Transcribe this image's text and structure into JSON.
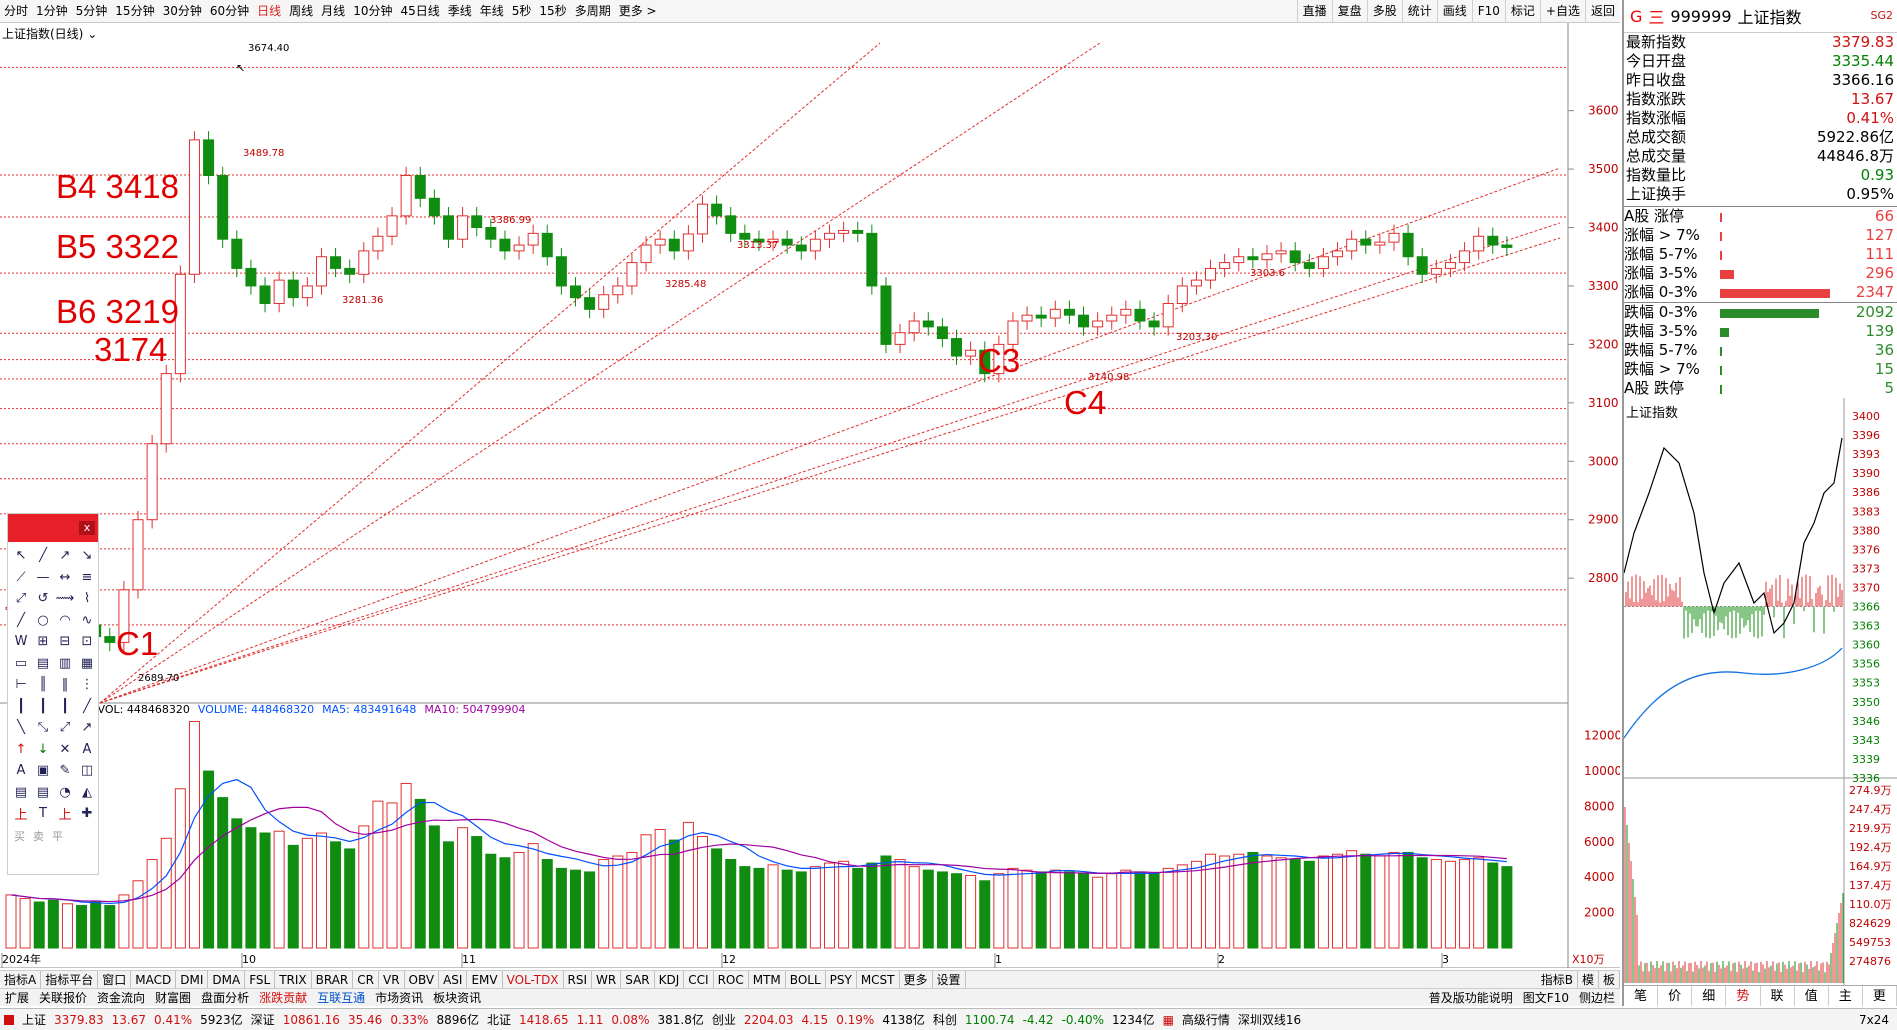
{
  "toolbar": {
    "timeframes": [
      "分时",
      "1分钟",
      "5分钟",
      "15分钟",
      "30分钟",
      "60分钟",
      "日线",
      "周线",
      "月线",
      "10分钟",
      "45日线",
      "季线",
      "年线",
      "5秒",
      "15秒",
      "多周期",
      "更多 >"
    ],
    "active_timeframe": "日线",
    "tools": [
      "直播",
      "复盘",
      "多股",
      "统计",
      "画线",
      "F10",
      "标记",
      "+自选",
      "返回"
    ]
  },
  "chart": {
    "title": "上证指数(日线)",
    "annotations": [
      "B4 3418",
      "B5 3322",
      "B6 3219",
      "3174",
      "C1",
      "C3",
      "C4"
    ],
    "price_labels": [
      "3674.40",
      "3489.78",
      "3386.99",
      "3285.48",
      "3281.36",
      "3313.37",
      "3203.30",
      "3140.98",
      "3303.6",
      "2689.70"
    ],
    "y_ticks": [
      "3600",
      "3500",
      "3400",
      "3300",
      "3200",
      "3100",
      "3000",
      "2900",
      "2800"
    ],
    "months": [
      "2024年",
      "10",
      "11",
      "12",
      "1",
      "2",
      "3"
    ],
    "volume_legend": {
      "vol": "VVOL: 448468320",
      "volume": "VOLUME: 448468320",
      "ma5": "MA5: 483491648",
      "ma10": "MA10: 504799904"
    },
    "volume_ticks": [
      "12000",
      "10000",
      "8000",
      "6000",
      "4000",
      "2000"
    ],
    "volume_unit": "X10万",
    "right_axis_label": "日线"
  },
  "chart_data": {
    "type": "candlestick",
    "title": "上证指数(日线)",
    "ylim": [
      2600,
      3750
    ],
    "labeled_points": [
      {
        "label": "3674.40",
        "value": 3674.4
      },
      {
        "label": "2689.70",
        "value": 2689.7
      },
      {
        "label": "3140.98",
        "value": 3140.98
      }
    ],
    "horizontal_levels": [
      3674,
      3489.78,
      3418,
      3322,
      3219,
      3174,
      3140.98,
      3090,
      3030,
      2970,
      2910,
      2850,
      2780,
      2720
    ],
    "x_labels": [
      "2024年",
      "10",
      "11",
      "12",
      "1",
      "2",
      "3"
    ],
    "volume": {
      "ylim": [
        0,
        13000
      ],
      "ticks": [
        12000,
        10000,
        8000,
        6000,
        4000,
        2000
      ],
      "unit": "X10万"
    }
  },
  "drawing_tools": {
    "close": "x",
    "footer": [
      "买",
      "卖",
      "平"
    ]
  },
  "bottom_tabs": {
    "left": [
      "指标A",
      "指标平台",
      "窗口",
      "MACD",
      "DMI",
      "DMA",
      "FSL",
      "TRIX",
      "BRAR",
      "CR",
      "VR",
      "OBV",
      "ASI",
      "EMV",
      "VOL-TDX",
      "RSI",
      "WR",
      "SAR",
      "KDJ",
      "CCI",
      "ROC",
      "MTM",
      "BOLL",
      "PSY",
      "MCST",
      "更多",
      "设置"
    ],
    "right": [
      "指标B",
      "模",
      "板"
    ],
    "active": "VOL-TDX"
  },
  "sub_tabs": {
    "left": [
      "扩展",
      "关联报价",
      "资金流向",
      "财富圈",
      "盘面分析",
      "涨跌贡献",
      "互联互通",
      "市场资讯",
      "板块资讯"
    ],
    "right": [
      "普及版功能说明",
      "图文F10",
      "侧边栏"
    ]
  },
  "status": {
    "sh": {
      "name": "上证",
      "price": "3379.83",
      "chg": "13.67",
      "pct": "0.41%",
      "amt": "5923亿"
    },
    "sz": {
      "name": "深证",
      "price": "10861.16",
      "chg": "35.46",
      "pct": "0.33%",
      "amt": "8896亿"
    },
    "bj": {
      "name": "北证",
      "price": "1418.65",
      "chg": "1.11",
      "pct": "0.08%",
      "amt": "381.8亿"
    },
    "cy": {
      "name": "创业",
      "price": "2204.03",
      "chg": "4.15",
      "pct": "0.19%",
      "amt": "4138亿"
    },
    "kc": {
      "name": "科创",
      "price": "1100.74",
      "chg": "-4.42",
      "pct": "-0.40%",
      "amt": "1234亿"
    },
    "extra": [
      "高级行情",
      "深圳双线16"
    ],
    "time": "7x24"
  },
  "right_panel": {
    "g": "G",
    "e": "三",
    "code": "999999",
    "name": "上证指数",
    "sg": "SG2",
    "quote": [
      {
        "label": "最新指数",
        "value": "3379.83",
        "color": "#d01010"
      },
      {
        "label": "今日开盘",
        "value": "3335.44",
        "color": "#008000"
      },
      {
        "label": "昨日收盘",
        "value": "3366.16",
        "color": "#000000"
      },
      {
        "label": "指数涨跌",
        "value": "13.67",
        "color": "#d01010"
      },
      {
        "label": "指数涨幅",
        "value": "0.41%",
        "color": "#d01010"
      },
      {
        "label": "总成交额",
        "value": "5922.86亿",
        "color": "#000000"
      },
      {
        "label": "总成交量",
        "value": "44846.8万",
        "color": "#000000"
      },
      {
        "label": "指数量比",
        "value": "0.93",
        "color": "#008000"
      },
      {
        "label": "上证换手",
        "value": "0.95%",
        "color": "#000000"
      }
    ],
    "advance": [
      {
        "label": "A股 涨停",
        "value": "66",
        "bar": 0.01,
        "color": "#e84040"
      },
      {
        "label": "涨幅 > 7%",
        "value": "127",
        "bar": 0.02,
        "color": "#e84040"
      },
      {
        "label": "涨幅 5-7%",
        "value": "111",
        "bar": 0.018,
        "color": "#e84040"
      },
      {
        "label": "涨幅 3-5%",
        "value": "296",
        "bar": 0.13,
        "color": "#e84040"
      },
      {
        "label": "涨幅 0-3%",
        "value": "2347",
        "bar": 1.0,
        "color": "#e84040"
      }
    ],
    "decline": [
      {
        "label": "跌幅 0-3%",
        "value": "2092",
        "bar": 0.9,
        "color": "#2a8c2a"
      },
      {
        "label": "跌幅 3-5%",
        "value": "139",
        "bar": 0.08,
        "color": "#2a8c2a"
      },
      {
        "label": "跌幅 5-7%",
        "value": "36",
        "bar": 0.01,
        "color": "#2a8c2a"
      },
      {
        "label": "跌幅 > 7%",
        "value": "15",
        "bar": 0.005,
        "color": "#2a8c2a"
      },
      {
        "label": "A股 跌停",
        "value": "5",
        "bar": 0.003,
        "color": "#2a8c2a"
      }
    ],
    "intraday_title": "上证指数",
    "intraday_ticks": [
      "3400",
      "3396",
      "3393",
      "3390",
      "3386",
      "3383",
      "3380",
      "3376",
      "3373",
      "3370",
      "3366",
      "3363",
      "3360",
      "3356",
      "3353",
      "3350",
      "3346",
      "3343",
      "3339",
      "3336"
    ],
    "intraday_vol_ticks": [
      "274.9万",
      "247.4万",
      "219.9万",
      "192.4万",
      "164.9万",
      "137.4万",
      "110.0万",
      "824629",
      "549753",
      "274876"
    ],
    "tabs": [
      "笔",
      "价",
      "细",
      "势",
      "联",
      "值",
      "主",
      "更"
    ],
    "active_tab": "势"
  }
}
